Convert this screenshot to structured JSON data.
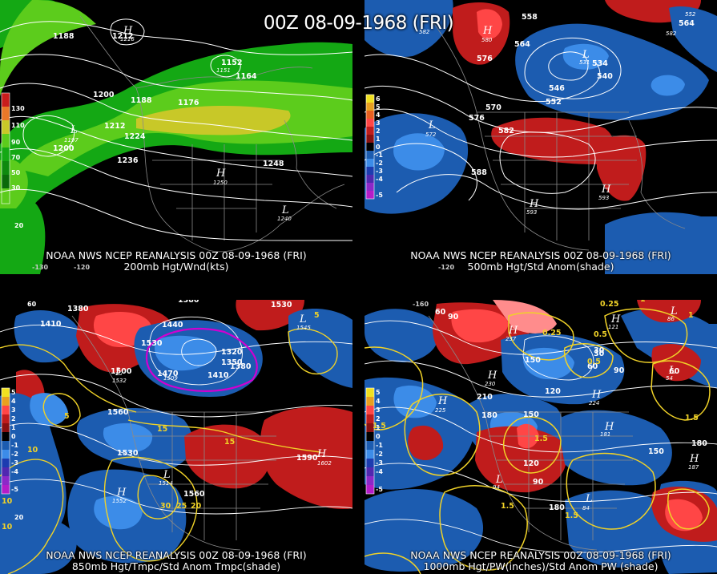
{
  "title": "00Z 08-09-1968 (FRI)",
  "colors": {
    "background": "#000000",
    "contour": "#ffffff",
    "wind_light": "#14a814",
    "wind_mid": "#5ccc1c",
    "wind_strong": "#c8c828",
    "anom_neg1": "#1c5cb0",
    "anom_neg2": "#3c8ce8",
    "anom_pos1": "#c01c1c",
    "anom_pos2": "#ff4646",
    "temp_contour": "#f0d228",
    "freezing_contour": "#d000d0"
  },
  "panels": [
    {
      "id": "200mb",
      "caption_line1": "NOAA NWS NCEP REANALYSIS 00Z 08-09-1968 (FRI)",
      "caption_line2": "200mb Hgt/Wnd(kts)",
      "colorbar": [
        "130",
        "110",
        "90",
        "70",
        "50",
        "30"
      ],
      "colorbar_bottom": "20",
      "height_labels": [
        "1188",
        "1212",
        "1200",
        "1188",
        "1176",
        "1212",
        "1224",
        "1200",
        "1236",
        "1248",
        "1164",
        "1152"
      ],
      "centers": [
        {
          "type": "H",
          "value": "1216"
        },
        {
          "type": "L",
          "value": "1197"
        },
        {
          "type": "H",
          "value": "1250"
        },
        {
          "type": "L",
          "value": "1240"
        },
        {
          "type": "L",
          "value": "1151"
        }
      ],
      "lat_labels": [
        "20"
      ],
      "lon_labels": [
        "-130",
        "-120"
      ]
    },
    {
      "id": "500mb",
      "caption_line1": "NOAA NWS NCEP REANALYSIS 00Z 08-09-1968 (FRI)",
      "caption_line2": "500mb Hgt/Std Anom(shade)",
      "colorbar": [
        "6",
        "5",
        "4",
        "3",
        "2",
        "1",
        "0",
        "-1",
        "-2",
        "-3",
        "-4",
        "-5"
      ],
      "height_labels": [
        "558",
        "576",
        "564",
        "534",
        "540",
        "546",
        "552",
        "570",
        "576",
        "582",
        "588",
        "564"
      ],
      "centers": [
        {
          "type": "H",
          "value": "582"
        },
        {
          "type": "H",
          "value": "580"
        },
        {
          "type": "L",
          "value": "531"
        },
        {
          "type": "L",
          "value": "572"
        },
        {
          "type": "H",
          "value": "593"
        },
        {
          "type": "H",
          "value": "593"
        },
        {
          "type": "H",
          "value": "582"
        },
        {
          "type": "L",
          "value": "552"
        }
      ],
      "lon_labels": [
        "-120"
      ]
    },
    {
      "id": "850mb",
      "caption_line1": "NOAA NWS NCEP REANALYSIS 00Z 08-09-1968 (FRI)",
      "caption_line2": "850mb Hgt/Tmpc/Std Anom Tmpc(shade)",
      "colorbar": [
        "5",
        "4",
        "3",
        "2",
        "1",
        "0",
        "-1",
        "-2",
        "-3",
        "-4",
        "-5"
      ],
      "height_labels": [
        "1380",
        "1410",
        "1380",
        "1440",
        "1530",
        "1470",
        "1320",
        "1350",
        "1380",
        "1410",
        "1530",
        "1500",
        "1560",
        "1530",
        "1560",
        "1590"
      ],
      "temp_labels": [
        "10",
        "15",
        "5",
        "5",
        "10",
        "15",
        "30",
        "25",
        "20",
        "10"
      ],
      "centers": [
        {
          "type": "L",
          "value": "1532"
        },
        {
          "type": "L",
          "value": "1509"
        },
        {
          "type": "H",
          "value": "1602"
        },
        {
          "type": "H",
          "value": "1552"
        },
        {
          "type": "L",
          "value": "1514"
        },
        {
          "type": "L",
          "value": "1545"
        }
      ],
      "lat_labels": [
        "60",
        "20"
      ]
    },
    {
      "id": "1000mb",
      "caption_line1": "NOAA NWS NCEP REANALYSIS 00Z 08-09-1968 (FRI)",
      "caption_line2": "1000mb Hgt/PW(inches)/Std Anom PW (shade)",
      "colorbar": [
        "5",
        "4",
        "3",
        "2",
        "1",
        "0",
        "-1",
        "-2",
        "-3",
        "-4",
        "-5"
      ],
      "height_labels": [
        "60",
        "90",
        "30",
        "150",
        "60",
        "90",
        "120",
        "210",
        "180",
        "150",
        "180",
        "120",
        "90",
        "150",
        "180",
        "60",
        "30"
      ],
      "pw_labels": [
        "0.25",
        "0.25",
        "0.5",
        "0.5",
        "1",
        "1",
        "1.5",
        "1.5",
        "1.5",
        "1.5",
        "1.5"
      ],
      "centers": [
        {
          "type": "H",
          "value": "230"
        },
        {
          "type": "H",
          "value": "225"
        },
        {
          "type": "H",
          "value": "237"
        },
        {
          "type": "H",
          "value": "224"
        },
        {
          "type": "H",
          "value": "187"
        },
        {
          "type": "H",
          "value": "181"
        },
        {
          "type": "L",
          "value": "94"
        },
        {
          "type": "L",
          "value": "86"
        },
        {
          "type": "L",
          "value": "54"
        },
        {
          "type": "L",
          "value": "84"
        },
        {
          "type": "H",
          "value": "121"
        }
      ],
      "lon_labels": [
        "-160"
      ]
    }
  ]
}
